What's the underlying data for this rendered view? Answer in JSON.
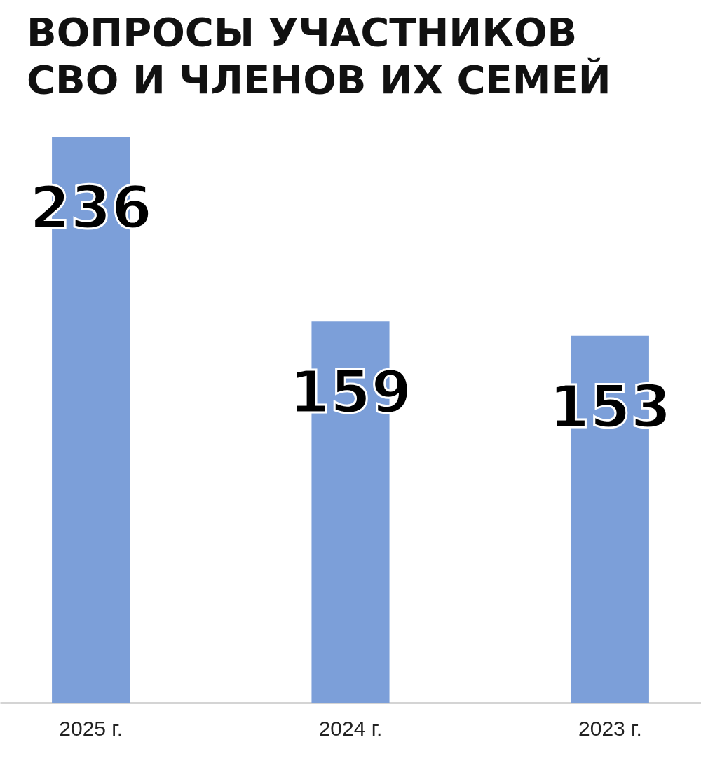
{
  "chart_data": {
    "type": "bar",
    "title": "ВОПРОСЫ УЧАСТНИКОВ СВО И ЧЛЕНОВ ИХ СЕМЕЙ",
    "categories": [
      "2025 г.",
      "2024 г.",
      "2023 г."
    ],
    "values": [
      236,
      159,
      153
    ],
    "color": "#7c9fd9",
    "data_labels": true
  }
}
